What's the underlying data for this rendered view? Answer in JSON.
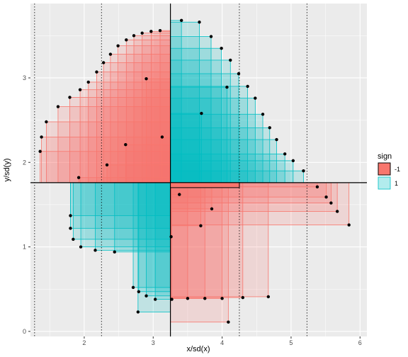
{
  "chart_data": {
    "type": "scatter",
    "xlabel": "x/sd(x)",
    "ylabel": "y/sd(y)",
    "xlim": [
      1.22,
      6.1
    ],
    "ylim": [
      -0.06,
      3.88
    ],
    "x_ticks": [
      2,
      3,
      4,
      5,
      6
    ],
    "y_ticks": [
      0,
      1,
      2,
      3
    ],
    "x_tick_labels": [
      "2",
      "3",
      "4",
      "5",
      "6"
    ],
    "y_tick_labels": [
      "0",
      "1",
      "2",
      "3"
    ],
    "grid": true,
    "mean": [
      3.25,
      1.76
    ],
    "sd_lines_x": [
      1.28,
      2.25,
      4.25,
      5.23
    ],
    "legend": {
      "title": "sign",
      "placement": "right",
      "entries": [
        {
          "label": "-1",
          "color": "#F8766D"
        },
        {
          "label": "1",
          "color": "#00BFC4"
        }
      ]
    },
    "points": [
      [
        3.41,
        3.68
      ],
      [
        3.67,
        3.66
      ],
      [
        3.84,
        3.49
      ],
      [
        3.99,
        3.35
      ],
      [
        4.12,
        3.21
      ],
      [
        4.24,
        3.05
      ],
      [
        4.37,
        2.9
      ],
      [
        4.48,
        2.76
      ],
      [
        4.59,
        2.57
      ],
      [
        4.69,
        2.41
      ],
      [
        4.79,
        2.27
      ],
      [
        4.91,
        2.1
      ],
      [
        5.03,
        2.02
      ],
      [
        5.18,
        1.9
      ],
      [
        3.1,
        3.56
      ],
      [
        2.97,
        3.55
      ],
      [
        2.84,
        3.53
      ],
      [
        2.72,
        3.5
      ],
      [
        2.61,
        3.45
      ],
      [
        2.49,
        3.38
      ],
      [
        2.38,
        3.28
      ],
      [
        2.28,
        3.18
      ],
      [
        2.18,
        3.07
      ],
      [
        2.06,
        2.95
      ],
      [
        1.94,
        2.86
      ],
      [
        1.79,
        2.77
      ],
      [
        1.62,
        2.66
      ],
      [
        1.45,
        2.48
      ],
      [
        1.38,
        2.3
      ],
      [
        1.36,
        2.13
      ],
      [
        5.38,
        1.71
      ],
      [
        5.51,
        1.59
      ],
      [
        5.58,
        1.52
      ],
      [
        5.67,
        1.42
      ],
      [
        5.84,
        1.26
      ],
      [
        1.8,
        1.37
      ],
      [
        1.8,
        1.22
      ],
      [
        1.84,
        1.09
      ],
      [
        1.95,
        1.0
      ],
      [
        2.16,
        0.96
      ],
      [
        2.44,
        0.94
      ],
      [
        2.71,
        0.52
      ],
      [
        2.79,
        0.47
      ],
      [
        2.9,
        0.42
      ],
      [
        3.03,
        0.38
      ],
      [
        3.27,
        0.38
      ],
      [
        3.5,
        0.39
      ],
      [
        3.75,
        0.39
      ],
      [
        4.0,
        0.39
      ],
      [
        4.3,
        0.4
      ],
      [
        4.67,
        0.41
      ],
      [
        2.78,
        0.23
      ],
      [
        4.09,
        0.11
      ],
      [
        3.26,
        1.12
      ],
      [
        3.69,
        1.25
      ],
      [
        3.85,
        1.45
      ],
      [
        3.38,
        1.62
      ],
      [
        2.6,
        2.21
      ],
      [
        2.9,
        2.99
      ],
      [
        3.7,
        2.58
      ],
      [
        4.07,
        2.89
      ],
      [
        3.13,
        2.3
      ],
      [
        2.33,
        1.97
      ],
      [
        1.92,
        1.82
      ]
    ]
  }
}
